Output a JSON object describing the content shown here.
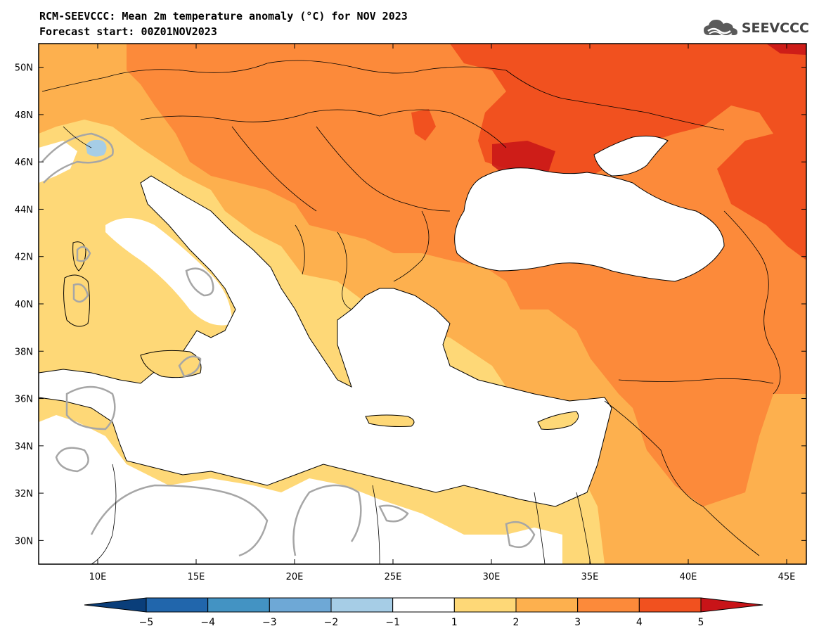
{
  "header": {
    "title_line1": "RCM-SEEVCCC: Mean 2m temperature anomaly (°C) for NOV 2023",
    "title_line2": "Forecast start: 00Z01NOV2023"
  },
  "logo": {
    "text": "SEEVCCC",
    "icon": "cloud-logo-icon",
    "color": "#555555"
  },
  "map": {
    "lon_range": [
      7,
      46
    ],
    "lat_range": [
      29,
      51
    ],
    "lon_ticks": [
      "10E",
      "15E",
      "20E",
      "25E",
      "30E",
      "35E",
      "40E",
      "45E"
    ],
    "lat_ticks": [
      "30N",
      "32N",
      "34N",
      "36N",
      "38N",
      "40N",
      "42N",
      "44N",
      "46N",
      "48N",
      "50N"
    ],
    "sea_color": "#ffffff",
    "border_color": "#000000",
    "contour_color": "#a6a6a6"
  },
  "colorbar": {
    "levels": [
      "-5",
      "-4",
      "-3",
      "-2",
      "-1",
      "1",
      "2",
      "3",
      "4",
      "5"
    ],
    "colors": [
      "#0a3e7a",
      "#2166ac",
      "#4393c3",
      "#6ea8d6",
      "#a6cde6",
      "#ffffff",
      "#fed877",
      "#fdb04e",
      "#fc8a3a",
      "#f1511f",
      "#c81418"
    ]
  }
}
